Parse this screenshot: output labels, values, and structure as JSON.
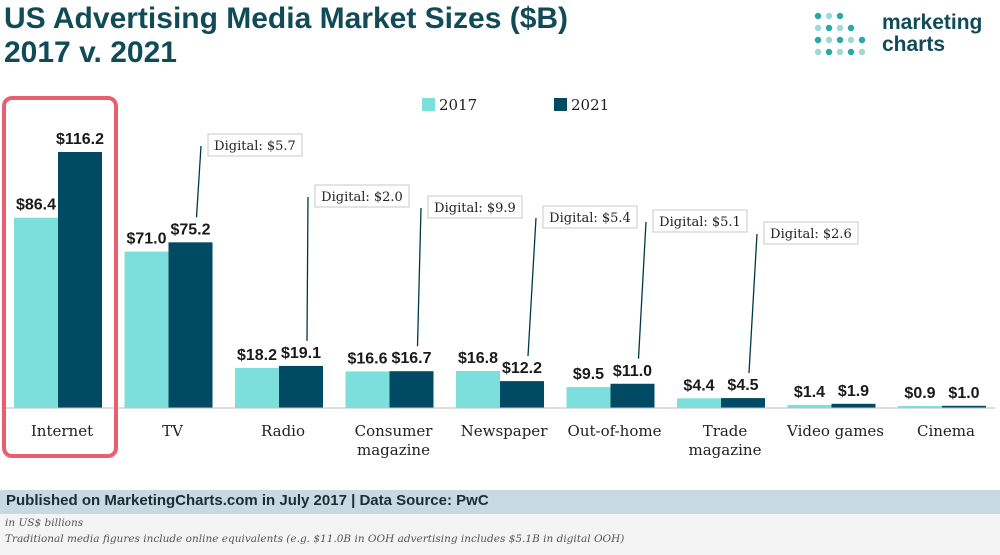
{
  "title": "US Advertising Media Market Sizes ($B) 2017 v. 2021",
  "title_lines": [
    "US Advertising Media Market Sizes ($B)",
    "2017 v. 2021"
  ],
  "logo": {
    "line1": "marketing",
    "line2": "charts"
  },
  "colors": {
    "series_2017": "#7ddfdc",
    "series_2021": "#004b63",
    "title": "#114b57",
    "highlight": "#e86070",
    "footer_bar": "#c9d9e3"
  },
  "chart_data": {
    "type": "bar",
    "title": "US Advertising Media Market Sizes ($B) 2017 v. 2021",
    "xlabel": "",
    "ylabel": "",
    "ylim": [
      0,
      116.2
    ],
    "grid": false,
    "legend_position": "top-center",
    "categories": [
      [
        "Internet"
      ],
      [
        "TV"
      ],
      [
        "Radio"
      ],
      [
        "Consumer",
        "magazine"
      ],
      [
        "Newspaper"
      ],
      [
        "Out-of-home"
      ],
      [
        "Trade",
        "magazine"
      ],
      [
        "Video games"
      ],
      [
        "Cinema"
      ]
    ],
    "series": [
      {
        "name": "2017",
        "values": [
          86.4,
          71.0,
          18.2,
          16.6,
          16.8,
          9.5,
          4.4,
          1.4,
          0.9
        ]
      },
      {
        "name": "2021",
        "values": [
          116.2,
          75.2,
          19.1,
          16.7,
          12.2,
          11.0,
          4.5,
          1.9,
          1.0
        ]
      }
    ],
    "data_labels": {
      "2017": [
        "$86.4",
        "$71.0",
        "$18.2",
        "$16.6",
        "$16.8",
        "$9.5",
        "$4.4",
        "$1.4",
        "$0.9"
      ],
      "2021": [
        "$116.2",
        "$75.2",
        "$19.1",
        "$16.7",
        "$12.2",
        "$11.0",
        "$4.5",
        "$1.9",
        "$1.0"
      ]
    },
    "annotations": [
      {
        "category_index": 1,
        "text": "Digital: $5.7"
      },
      {
        "category_index": 2,
        "text": "Digital: $2.0"
      },
      {
        "category_index": 3,
        "text": "Digital: $9.9"
      },
      {
        "category_index": 4,
        "text": "Digital: $5.4"
      },
      {
        "category_index": 5,
        "text": "Digital: $5.1"
      },
      {
        "category_index": 6,
        "text": "Digital: $2.6"
      }
    ],
    "highlighted_category_index": 0
  },
  "footer": {
    "published": "Published on MarketingCharts.com in July 2017 | Data Source: PwC",
    "notes": [
      "in US$ billions",
      "Traditional media figures include online equivalents (e.g. $11.0B in OOH advertising includes $5.1B in digital OOH)"
    ]
  }
}
